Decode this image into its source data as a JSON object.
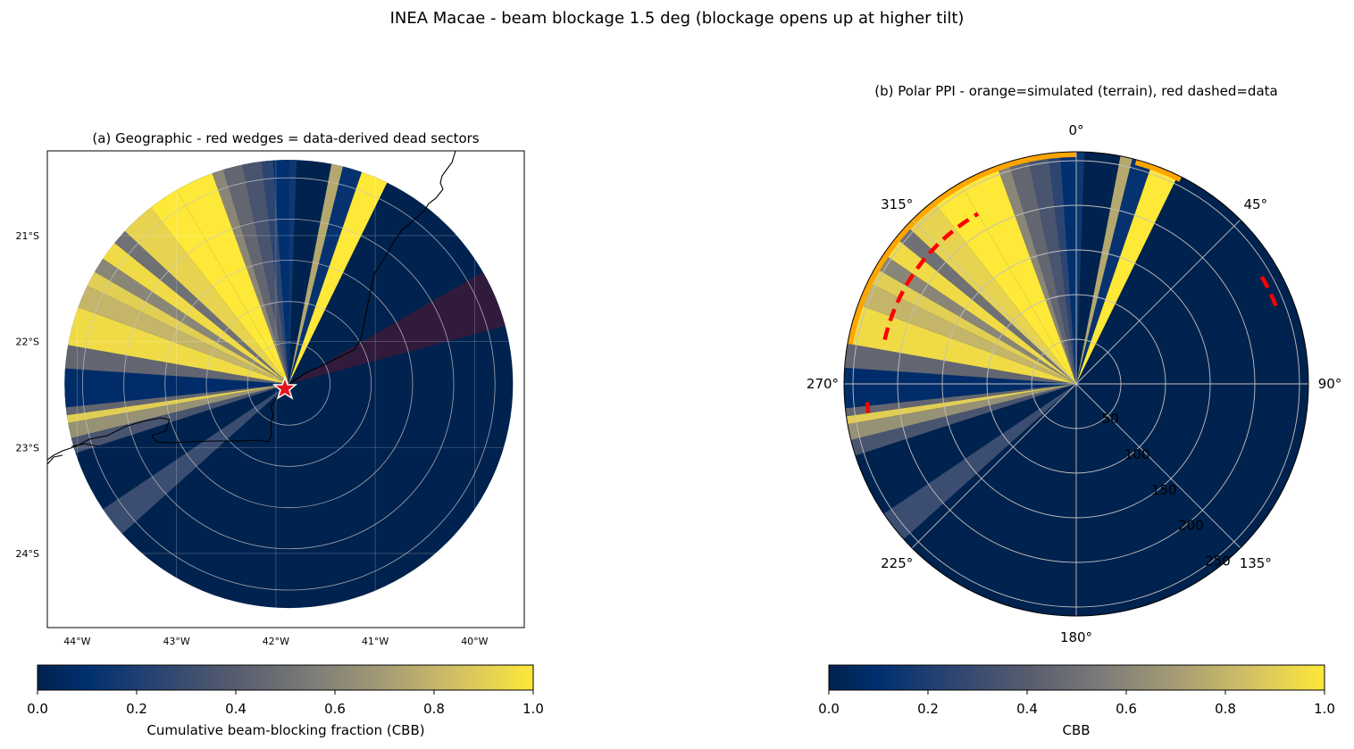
{
  "figure": {
    "suptitle": "INEA Macae - beam blockage 1.5 deg (blockage opens up at higher tilt)"
  },
  "colors": {
    "cbb_low": "#00224e",
    "cbb_mid": "#7c7b78",
    "cbb_high": "#fee838",
    "simulated_ring": "#ffa500",
    "data_dashed": "#ff0000",
    "dead_sector": "#3a1a3a",
    "coastline": "#000000",
    "grid": "#b0b0b0"
  },
  "chart_data": [
    {
      "type": "heatmap",
      "title": "(a) Geographic  -  red wedges = data-derived dead sectors",
      "projection": "lon-lat",
      "xlim": [
        -44.3,
        -39.5
      ],
      "ylim": [
        -24.7,
        -20.2
      ],
      "xticks": [
        -44,
        -43,
        -42,
        -41,
        -40
      ],
      "xtick_labels": [
        "44°W",
        "43°W",
        "42°W",
        "41°W",
        "40°W"
      ],
      "yticks": [
        -21,
        -22,
        -23,
        -24
      ],
      "ytick_labels": [
        "21°S",
        "22°S",
        "23°S",
        "24°S"
      ],
      "grid": true,
      "radar_site": {
        "lon": -41.87,
        "lat": -22.4,
        "marker": "star"
      },
      "max_range_km": 250,
      "range_rings_km": [
        50,
        100,
        150,
        200,
        250
      ],
      "azimuth_sectors_cbb": [
        {
          "az": [
            0,
            2
          ],
          "cbb": 0.15
        },
        {
          "az": [
            2,
            11
          ],
          "cbb": 0.0
        },
        {
          "az": [
            11,
            14
          ],
          "cbb": 0.75
        },
        {
          "az": [
            14,
            19
          ],
          "cbb": 0.12
        },
        {
          "az": [
            19,
            26
          ],
          "cbb": 1.0
        },
        {
          "az": [
            26,
            360
          ],
          "cbb": 0.0
        },
        {
          "az": [
            228,
            236
          ],
          "cbb": 0.3
        },
        {
          "az": [
            252,
            256
          ],
          "cbb": 0.35
        },
        {
          "az": [
            256,
            260
          ],
          "cbb": 0.65
        },
        {
          "az": [
            260,
            262
          ],
          "cbb": 0.9
        },
        {
          "az": [
            262,
            264
          ],
          "cbb": 0.45
        },
        {
          "az": [
            264,
            274
          ],
          "cbb": 0.08
        },
        {
          "az": [
            274,
            280
          ],
          "cbb": 0.45
        },
        {
          "az": [
            280,
            290
          ],
          "cbb": 0.95
        },
        {
          "az": [
            290,
            296
          ],
          "cbb": 0.8
        },
        {
          "az": [
            296,
            300
          ],
          "cbb": 0.9
        },
        {
          "az": [
            300,
            304
          ],
          "cbb": 0.6
        },
        {
          "az": [
            304,
            309
          ],
          "cbb": 0.95
        },
        {
          "az": [
            309,
            313
          ],
          "cbb": 0.5
        },
        {
          "az": [
            313,
            322
          ],
          "cbb": 0.92
        },
        {
          "az": [
            322,
            330
          ],
          "cbb": 1.0
        },
        {
          "az": [
            330,
            340
          ],
          "cbb": 1.0
        },
        {
          "az": [
            340,
            343
          ],
          "cbb": 0.6
        },
        {
          "az": [
            343,
            348
          ],
          "cbb": 0.45
        },
        {
          "az": [
            348,
            353
          ],
          "cbb": 0.35
        },
        {
          "az": [
            353,
            356
          ],
          "cbb": 0.25
        },
        {
          "az": [
            356,
            360
          ],
          "cbb": 0.1
        }
      ],
      "dead_sectors_az": [
        [
          60,
          75
        ]
      ]
    },
    {
      "type": "heatmap",
      "title": "(b) Polar PPI  -  orange=simulated (terrain), red dashed=data",
      "projection": "polar",
      "theta_direction": "clockwise",
      "theta_zero": "N",
      "theta_labels": [
        "0°",
        "45°",
        "90°",
        "135°",
        "180°",
        "225°",
        "270°",
        "315°"
      ],
      "radial_ticks": [
        50,
        100,
        150,
        200,
        250
      ],
      "radial_tick_labels": [
        "50",
        "100",
        "150",
        "200",
        "250"
      ],
      "r_max": 260,
      "simulated_blocked_ring_az": [
        [
          280,
          360
        ],
        [
          15,
          27
        ]
      ],
      "data_dead_arcs": [
        {
          "az": [
            265,
            262
          ],
          "r": 235
        },
        {
          "az": [
            283,
            330
          ],
          "r": 220
        },
        {
          "az": [
            60,
            70
          ],
          "r": 240
        }
      ],
      "azimuth_sectors_cbb": "same as panel (a)"
    }
  ],
  "colorbars": [
    {
      "label": "Cumulative beam-blocking fraction (CBB)",
      "ticks": [
        0.0,
        0.2,
        0.4,
        0.6,
        0.8,
        1.0
      ],
      "tick_labels": [
        "0.0",
        "0.2",
        "0.4",
        "0.6",
        "0.8",
        "1.0"
      ],
      "range": [
        0,
        1
      ]
    },
    {
      "label": "CBB",
      "ticks": [
        0.0,
        0.2,
        0.4,
        0.6,
        0.8,
        1.0
      ],
      "tick_labels": [
        "0.0",
        "0.2",
        "0.4",
        "0.6",
        "0.8",
        "1.0"
      ],
      "range": [
        0,
        1
      ]
    }
  ]
}
